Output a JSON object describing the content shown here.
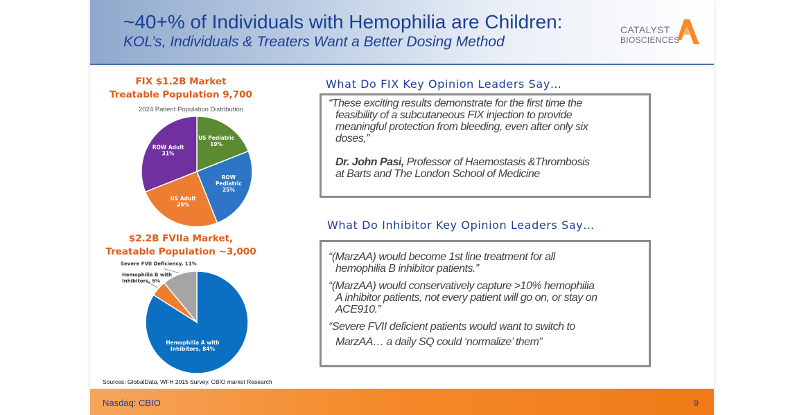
{
  "header": {
    "title": "~40+% of Individuals with Hemophilia are Children:",
    "subtitle": "KOL’s, Individuals & Treaters Want a Better Dosing Method"
  },
  "logo": {
    "line1": "CATALYST",
    "line2": "BIOSCIENCES",
    "colors": {
      "mark": "#f58a2a",
      "text": "#6b7079"
    }
  },
  "fix_market": {
    "line1": "FIX $1.2B Market",
    "line2": "Treatable Population 9,700"
  },
  "fviia_market": {
    "line1": "$2.2B FVIIa Market,",
    "line2": "Treatable Population ~3,000"
  },
  "chart_data": [
    {
      "type": "pie",
      "title": "2024 Patient Population Distribution",
      "slices": [
        {
          "label": "US Pediatric",
          "value": 19,
          "display": "19%",
          "color": "#5b8a32"
        },
        {
          "label": "ROW Pediatric",
          "value": 25,
          "display": "25%",
          "color": "#2e75c6"
        },
        {
          "label": "US Adult",
          "value": 25,
          "display": "25%",
          "color": "#ed7d31"
        },
        {
          "label": "ROW Adult",
          "value": 31,
          "display": "31%",
          "color": "#7030a0"
        }
      ]
    },
    {
      "type": "pie",
      "title": "",
      "slices": [
        {
          "label": "Hemophilia A with Inhibitors",
          "value": 84,
          "display": "84%",
          "color": "#0b70c2"
        },
        {
          "label": "Hemophilia B with Inhibitors",
          "value": 5,
          "display": "5%",
          "color": "#ed7d31"
        },
        {
          "label": "Severe FVII Deficiency",
          "value": 11,
          "display": "11%",
          "color": "#a5a5a5"
        }
      ]
    }
  ],
  "fix_kol": {
    "heading": "What Do FIX Key Opinion Leaders Say…",
    "quote_lines": [
      "“These exciting results demonstrate for the first time the",
      "feasibility of a subcutaneous FIX injection to provide",
      "meaningful protection from bleeding, even after only six",
      "doses,”"
    ],
    "author_name": "Dr. John Pasi,",
    "author_title_line1": " Professor of Haemostasis &Thrombosis",
    "author_title_line2": "at Barts and The London School of Medicine"
  },
  "inhibitor_kol": {
    "heading": "What Do Inhibitor Key Opinion Leaders Say…",
    "quote1_lines": [
      "“(MarzAA) would become 1st line treatment for all",
      "hemophilia B inhibitor patients.”"
    ],
    "quote2_lines": [
      "“(MarzAA) would conservatively capture >10% hemophilia",
      "A inhibitor patients, not every patient will go on, or stay on",
      "ACE910.”"
    ],
    "quote3_lines": [
      "“Severe FVII deficient patients would want to switch to",
      "MarzAA… a daily SQ could ‘normalize’ them”"
    ]
  },
  "sources": "Sources: GlobalData, WFH 2015 Survey, CBIO market Research",
  "footer": {
    "left": "Nasdaq: CBIO",
    "page_number": "9"
  }
}
